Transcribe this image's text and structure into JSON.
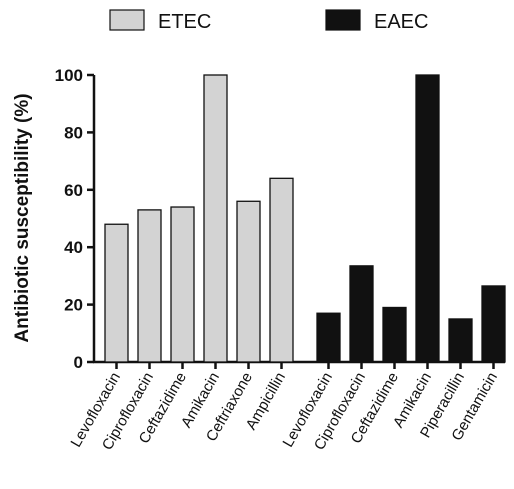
{
  "chart_data": {
    "type": "bar",
    "ylabel": "Antibiotic susceptibility (%)",
    "ylim": [
      0,
      100
    ],
    "yticks": [
      0,
      20,
      40,
      60,
      80,
      100
    ],
    "grid": false,
    "legend_position": "top",
    "groups": [
      {
        "name": "ETEC",
        "color": "#d3d3d3",
        "categories": [
          "Levofloxacin",
          "Ciprofloxacin",
          "Ceftazidime",
          "Amikacin",
          "Ceftriaxone",
          "Ampicillin"
        ],
        "values": [
          48,
          53,
          54,
          100,
          56,
          64
        ]
      },
      {
        "name": "EAEC",
        "color": "#111111",
        "categories": [
          "Levofloxacin",
          "Ciprofloxacin",
          "Ceftazidime",
          "Amikacin",
          "Piperacillin",
          "Gentamicin"
        ],
        "values": [
          17,
          33.5,
          19,
          100,
          15,
          26.5
        ]
      }
    ]
  }
}
